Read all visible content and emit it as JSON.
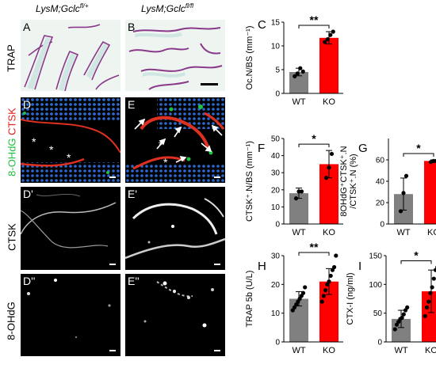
{
  "headers": {
    "col1": "LysM;Gclc",
    "col1_sup": "fl/+",
    "col2": "LysM;Gclc",
    "col2_sup": "fl/fl"
  },
  "row_labels": {
    "trap": "TRAP",
    "merge_green": "8-OHdG",
    "merge_red": "CTSK",
    "ctsk": "CTSK",
    "ohdg": "8-OHdG"
  },
  "panel_letters": {
    "A": "A",
    "B": "B",
    "D": "D",
    "E": "E",
    "D1": "D'",
    "E1": "E'",
    "D2": "D''",
    "E2": "E''"
  },
  "asterisk": "*",
  "colors": {
    "wt": "#808080",
    "ko": "#ff0000",
    "ctsk": "#e03020",
    "ohdg": "#20c040",
    "dapi": "#2060c0",
    "trap_stain": "#8a3a8a"
  },
  "chart_data": [
    {
      "id": "C",
      "type": "bar",
      "letter": "C",
      "categories": [
        "WT",
        "KO"
      ],
      "values": [
        4.5,
        11.7
      ],
      "errors": [
        0.8,
        1.3
      ],
      "points": [
        [
          3.6,
          4.2,
          5.3,
          4.6
        ],
        [
          10.8,
          11.4,
          12.3,
          13.0
        ]
      ],
      "ylabel": "Oc.N/BS (mm⁻¹)",
      "ylim": [
        0,
        15
      ],
      "yticks": [
        "0",
        "5",
        "10",
        "15"
      ],
      "sig": "**"
    },
    {
      "id": "F",
      "type": "bar",
      "letter": "F",
      "categories": [
        "WT",
        "KO"
      ],
      "values": [
        18,
        35
      ],
      "errors": [
        3,
        8
      ],
      "points": [
        [
          15,
          19,
          19
        ],
        [
          27,
          33,
          41
        ]
      ],
      "ylabel": "CTSK⁺.N/BS (mm⁻¹)",
      "ylim": [
        0,
        50
      ],
      "yticks": [
        "0",
        "10",
        "20",
        "30",
        "40",
        "50"
      ],
      "sig": "*"
    },
    {
      "id": "G",
      "type": "bar",
      "letter": "G",
      "categories": [
        "WT",
        "KO"
      ],
      "values": [
        28,
        59
      ],
      "errors": [
        15,
        1
      ],
      "points": [
        [
          12,
          29,
          45
        ],
        [
          58,
          59,
          59
        ]
      ],
      "ylabel": "8OHdG⁺CTSK⁺.N/CTSK⁺.N (%)",
      "ylabel_line1": "8OHdG⁺CTSK⁺.N",
      "ylabel_line2": "/CTSK⁺.N (%)",
      "ylim": [
        0,
        80
      ],
      "yticks": [
        "0",
        "20",
        "40",
        "60"
      ],
      "sig": "*"
    },
    {
      "id": "H",
      "type": "bar",
      "letter": "H",
      "categories": [
        "WT",
        "KO"
      ],
      "values": [
        15,
        21
      ],
      "errors": [
        2.5,
        4.5
      ],
      "points": [
        [
          11,
          12,
          13,
          14,
          15,
          16,
          17,
          19
        ],
        [
          14,
          16,
          18,
          20,
          21,
          23,
          25,
          26,
          30
        ]
      ],
      "ylabel": "TRAP 5b (U/L)",
      "ylim": [
        0,
        30
      ],
      "yticks": [
        "0",
        "10",
        "20",
        "30"
      ],
      "sig": "**"
    },
    {
      "id": "I",
      "type": "bar",
      "letter": "I",
      "categories": [
        "WT",
        "KO"
      ],
      "values": [
        40,
        88
      ],
      "errors": [
        15,
        37
      ],
      "points": [
        [
          22,
          30,
          35,
          40,
          42,
          48,
          55,
          60
        ],
        [
          45,
          60,
          70,
          85,
          95,
          110,
          125,
          130
        ]
      ],
      "ylabel": "CTX-I (ng/ml)",
      "ylim": [
        0,
        150
      ],
      "yticks": [
        "0",
        "50",
        "100",
        "150"
      ],
      "sig": "*"
    }
  ]
}
